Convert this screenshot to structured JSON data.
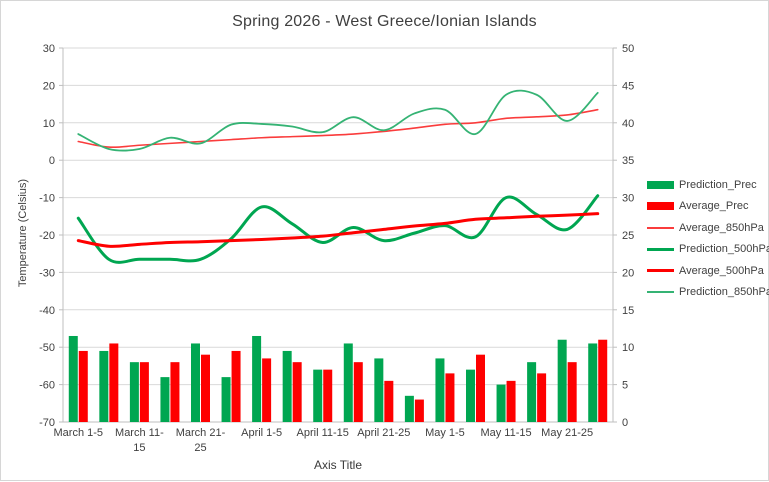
{
  "chart_data": {
    "type": "combo",
    "title": "Spring 2026 - West Greece/Ionian Islands",
    "x_axis": {
      "title": "Axis Title"
    },
    "left_axis": {
      "title": "Temperature (Celsius)",
      "min": -70,
      "max": 30,
      "step": 10
    },
    "right_axis": {
      "min": 0,
      "max": 50,
      "step": 5
    },
    "grid": true,
    "legend_position": "right",
    "categories": [
      "March 1-5",
      "",
      "March 11-15",
      "",
      "March 21-25",
      "",
      "April 1-5",
      "",
      "April 11-15",
      "",
      "April 21-25",
      "",
      "May 1-5",
      "",
      "May 11-15",
      "",
      "May 21-25",
      ""
    ],
    "x_tick_labels": [
      {
        "index": 0,
        "lines": [
          "March 1-5"
        ]
      },
      {
        "index": 2,
        "lines": [
          "March 11-",
          "15"
        ]
      },
      {
        "index": 4,
        "lines": [
          "March 21-",
          "25"
        ]
      },
      {
        "index": 6,
        "lines": [
          "April 1-5"
        ]
      },
      {
        "index": 8,
        "lines": [
          "April 11-15"
        ]
      },
      {
        "index": 10,
        "lines": [
          "April 21-25"
        ]
      },
      {
        "index": 12,
        "lines": [
          "May 1-5"
        ]
      },
      {
        "index": 14,
        "lines": [
          "May 11-15"
        ]
      },
      {
        "index": 16,
        "lines": [
          "May 21-25"
        ]
      }
    ],
    "series": [
      {
        "name": "Prediction_Prec",
        "type": "bar",
        "axis": "right",
        "color": "#00A651",
        "values": [
          11.5,
          9.5,
          8,
          6,
          10.5,
          6,
          11.5,
          9.5,
          7,
          10.5,
          8.5,
          3.5,
          8.5,
          7,
          5,
          8,
          11,
          10.5
        ]
      },
      {
        "name": "Average_Prec",
        "type": "bar",
        "axis": "right",
        "color": "#FE0000",
        "values": [
          9.5,
          10.5,
          8,
          8,
          9,
          9.5,
          8.5,
          8,
          7,
          8,
          5.5,
          3,
          6.5,
          9,
          5.5,
          6.5,
          8,
          11
        ]
      },
      {
        "name": "Average_850hPa",
        "type": "line",
        "axis": "left",
        "color": "#FA3C3C",
        "width": 1.6,
        "values": [
          5,
          3.5,
          4,
          4.5,
          5,
          5.5,
          6,
          6.3,
          6.6,
          7,
          7.7,
          8.6,
          9.6,
          10,
          11.2,
          11.6,
          12.1,
          13.5
        ]
      },
      {
        "name": "Prediction_500hPa",
        "type": "line",
        "axis": "left",
        "color": "#00A651",
        "width": 3,
        "values": [
          -15.5,
          -26.5,
          -26.5,
          -26.5,
          -26.5,
          -21,
          -12.5,
          -17,
          -22,
          -18,
          -21.5,
          -19.5,
          -17.5,
          -20.5,
          -10,
          -14.5,
          -18.5,
          -9.5
        ]
      },
      {
        "name": "Average_500hPa",
        "type": "line",
        "axis": "left",
        "color": "#FE0000",
        "width": 3,
        "values": [
          -21.5,
          -23,
          -22.5,
          -22,
          -21.8,
          -21.5,
          -21.2,
          -20.8,
          -20.3,
          -19.4,
          -18.5,
          -17.6,
          -16.9,
          -15.8,
          -15.4,
          -15,
          -14.7,
          -14.3
        ]
      },
      {
        "name": "Prediction_850hPa",
        "type": "line",
        "axis": "left",
        "color": "#35B374",
        "width": 1.8,
        "values": [
          7,
          3,
          3,
          6,
          4.5,
          9.5,
          9.7,
          9,
          7.5,
          11.5,
          8,
          12.5,
          13.5,
          7,
          17.5,
          17.5,
          10.5,
          18
        ]
      }
    ],
    "legend": {
      "items": [
        {
          "label": "Prediction_Prec",
          "marker": "bar",
          "color": "#00A651"
        },
        {
          "label": "Average_Prec",
          "marker": "bar",
          "color": "#FE0000"
        },
        {
          "label": "Average_850hPa",
          "marker": "line",
          "color": "#FA3C3C",
          "thickness": 2
        },
        {
          "label": "Prediction_500hPa",
          "marker": "line",
          "color": "#00A651",
          "thickness": 3
        },
        {
          "label": "Average_500hPa",
          "marker": "line",
          "color": "#FE0000",
          "thickness": 3
        },
        {
          "label": "Prediction_850hPa",
          "marker": "line",
          "color": "#35B374",
          "thickness": 2
        }
      ]
    },
    "colors": {
      "grid": "#D9D9D9",
      "axis": "#BFBFBF",
      "text": "#404040",
      "background": "#FFFFFF"
    }
  }
}
